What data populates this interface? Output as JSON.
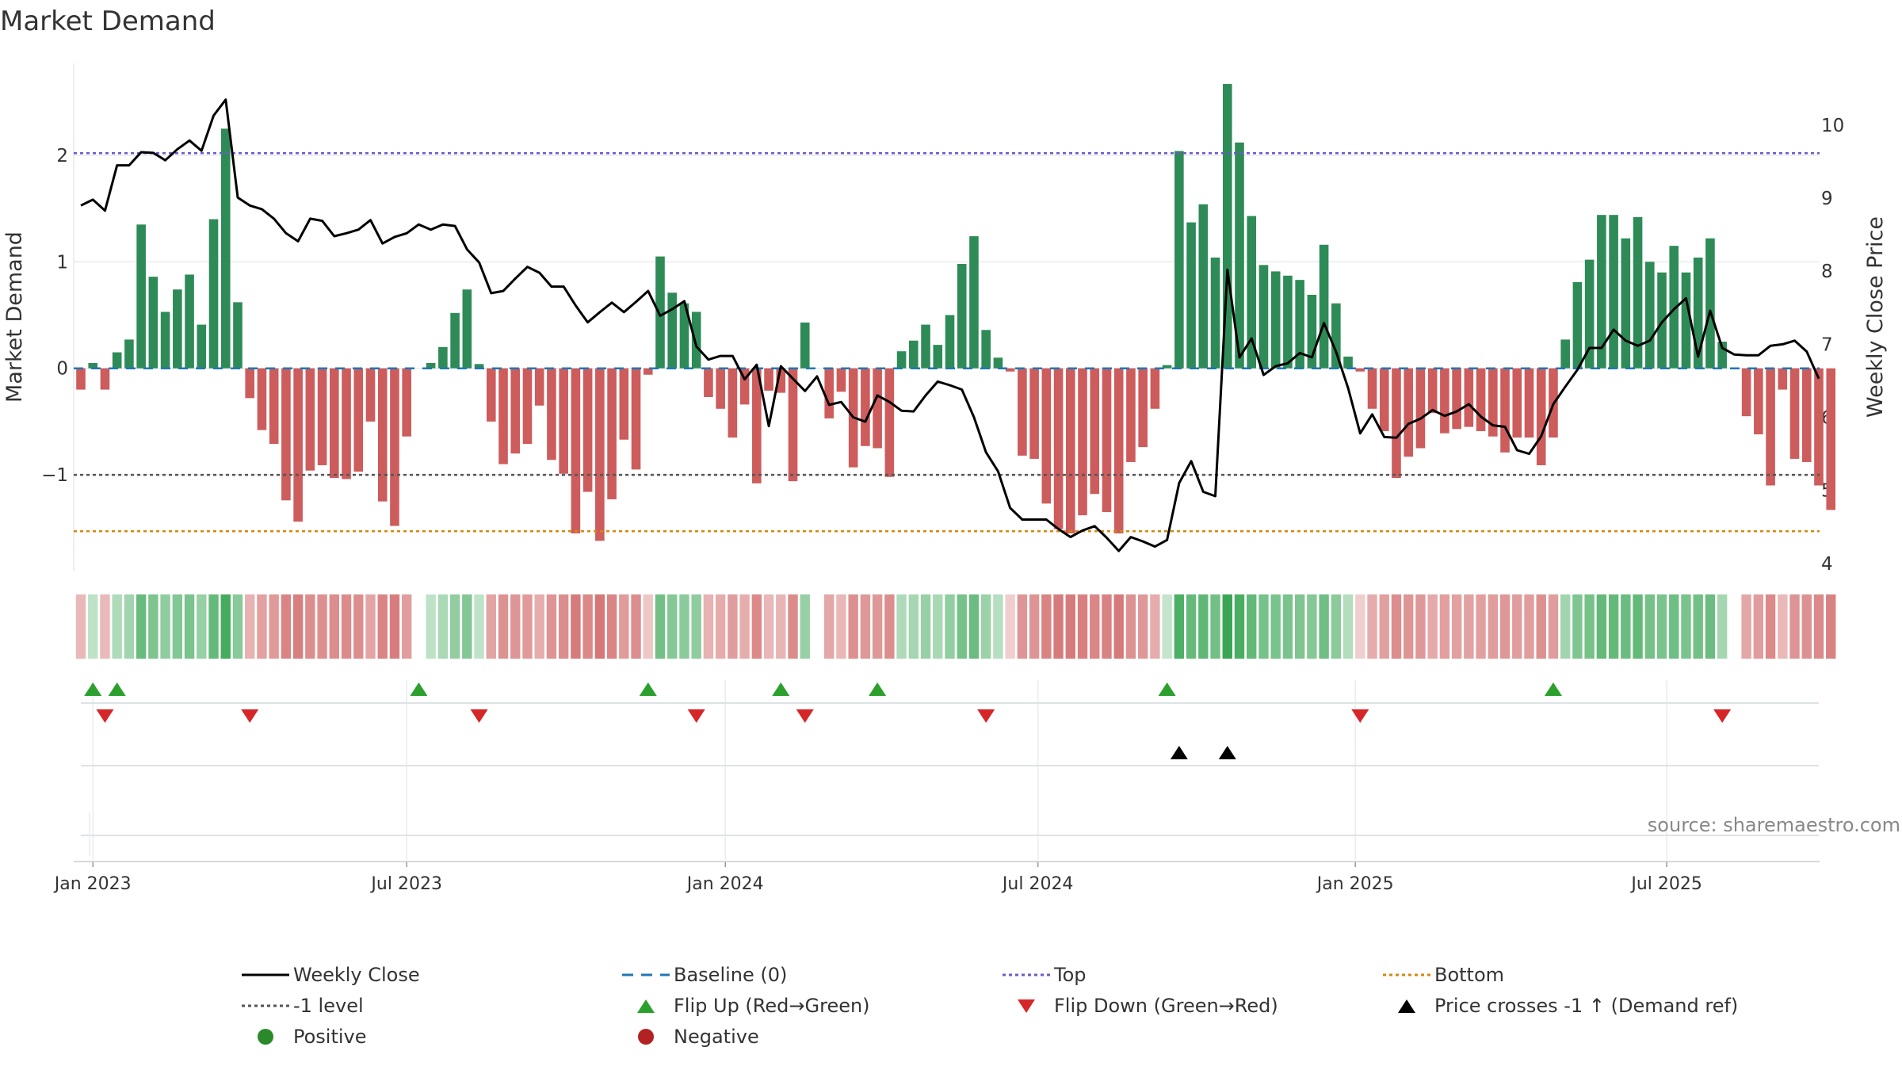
{
  "chart_data": {
    "type": "bar+line",
    "title": "Market Demand",
    "ylabel_left": "Market Demand",
    "ylabel_right": "Weekly Close Price",
    "ylim_left": [
      -1.9,
      2.9
    ],
    "ylim_right": [
      3.9,
      10.9
    ],
    "yticks_left": [
      {
        "v": 2,
        "label": "2"
      },
      {
        "v": 1,
        "label": "1"
      },
      {
        "v": 0,
        "label": "0"
      },
      {
        "v": -1,
        "label": "−1"
      }
    ],
    "yticks_right": [
      {
        "v": 10,
        "label": "10"
      },
      {
        "v": 9,
        "label": "9"
      },
      {
        "v": 8,
        "label": "8"
      },
      {
        "v": 7,
        "label": "7"
      },
      {
        "v": 6,
        "label": "6"
      },
      {
        "v": 5,
        "label": "5"
      },
      {
        "v": 4,
        "label": "4"
      }
    ],
    "x_start": "2022-12-26",
    "x_weeks": 145,
    "xticks": [
      {
        "week": 1,
        "label": "Jan 2023"
      },
      {
        "week": 27,
        "label": "Jul 2023"
      },
      {
        "week": 53.4,
        "label": "Jan 2024"
      },
      {
        "week": 79.3,
        "label": "Jul 2024"
      },
      {
        "week": 105.6,
        "label": "Jan 2025"
      },
      {
        "week": 131.4,
        "label": "Jul 2025"
      }
    ],
    "reference_lines": {
      "top": 2.02,
      "minus_one": -1.0,
      "bottom": -1.53,
      "baseline": 0
    },
    "demand": [
      -0.2,
      0.05,
      -0.2,
      0.15,
      0.27,
      1.35,
      0.86,
      0.53,
      0.74,
      0.88,
      0.41,
      1.4,
      2.25,
      0.62,
      -0.28,
      -0.58,
      -0.71,
      -1.24,
      -1.44,
      -0.96,
      -0.91,
      -1.03,
      -1.04,
      -0.97,
      -0.5,
      -1.25,
      -1.48,
      -0.64,
      0.0,
      0.05,
      0.2,
      0.52,
      0.74,
      0.04,
      -0.5,
      -0.9,
      -0.8,
      -0.71,
      -0.35,
      -0.86,
      -0.99,
      -1.55,
      -1.16,
      -1.62,
      -1.23,
      -0.67,
      -0.95,
      -0.06,
      1.05,
      0.71,
      0.61,
      0.53,
      -0.27,
      -0.38,
      -0.65,
      -0.34,
      -1.08,
      -0.21,
      -0.23,
      -1.06,
      0.43,
      0.0,
      -0.47,
      -0.22,
      -0.93,
      -0.73,
      -0.75,
      -1.02,
      0.16,
      0.26,
      0.41,
      0.22,
      0.5,
      0.98,
      1.24,
      0.36,
      0.1,
      -0.03,
      -0.82,
      -0.85,
      -1.27,
      -1.51,
      -1.55,
      -1.38,
      -1.18,
      -1.35,
      -1.55,
      -0.88,
      -0.74,
      -0.38,
      0.03,
      2.04,
      1.37,
      1.54,
      1.04,
      2.67,
      2.12,
      1.43,
      0.97,
      0.91,
      0.87,
      0.83,
      0.69,
      1.16,
      0.61,
      0.11,
      -0.03,
      -0.38,
      -0.59,
      -1.03,
      -0.83,
      -0.75,
      -0.42,
      -0.61,
      -0.57,
      -0.55,
      -0.59,
      -0.64,
      -0.79,
      -0.65,
      -0.65,
      -0.91,
      -0.65,
      0.27,
      0.81,
      1.02,
      1.44,
      1.44,
      1.22,
      1.42,
      1.0,
      0.9,
      1.15,
      0.9,
      1.04,
      1.22,
      0.25,
      0.0,
      -0.45,
      -0.62,
      -1.1,
      -0.2,
      -0.85,
      -0.88,
      -1.1,
      -1.33
    ],
    "price": [
      8.9,
      8.98,
      8.83,
      9.45,
      9.45,
      9.63,
      9.62,
      9.52,
      9.67,
      9.79,
      9.65,
      10.13,
      10.35,
      9.01,
      8.9,
      8.85,
      8.72,
      8.52,
      8.41,
      8.72,
      8.69,
      8.48,
      8.52,
      8.57,
      8.7,
      8.38,
      8.47,
      8.52,
      8.64,
      8.57,
      8.64,
      8.62,
      8.3,
      8.12,
      7.7,
      7.73,
      7.9,
      8.06,
      7.98,
      7.79,
      7.79,
      7.53,
      7.3,
      7.44,
      7.57,
      7.44,
      7.58,
      7.73,
      7.39,
      7.48,
      7.59,
      6.97,
      6.79,
      6.84,
      6.84,
      6.52,
      6.72,
      5.88,
      6.7,
      6.53,
      6.36,
      6.56,
      6.17,
      6.21,
      6.0,
      5.94,
      6.3,
      6.21,
      6.09,
      6.08,
      6.3,
      6.49,
      6.44,
      6.38,
      6.0,
      5.52,
      5.26,
      4.76,
      4.6,
      4.6,
      4.6,
      4.47,
      4.36,
      4.45,
      4.51,
      4.35,
      4.17,
      4.36,
      4.3,
      4.23,
      4.32,
      5.1,
      5.4,
      4.98,
      4.92,
      8.02,
      6.82,
      7.08,
      6.58,
      6.7,
      6.74,
      6.88,
      6.82,
      7.29,
      6.9,
      6.4,
      5.78,
      6.04,
      5.73,
      5.72,
      5.91,
      5.98,
      6.1,
      6.02,
      6.08,
      6.18,
      6.01,
      5.89,
      5.87,
      5.55,
      5.5,
      5.74,
      6.18,
      6.42,
      6.65,
      6.95,
      6.95,
      7.2,
      7.05,
      6.98,
      7.05,
      7.3,
      7.48,
      7.63,
      6.83,
      7.46,
      6.95,
      6.86,
      6.85,
      6.85,
      6.98,
      7.0,
      7.05,
      6.9,
      6.53
    ],
    "flip_up_weeks": [
      1,
      3,
      28,
      47,
      58,
      66,
      90,
      122
    ],
    "flip_down_weeks": [
      2,
      14,
      33,
      51,
      60,
      75,
      106,
      136
    ],
    "price_cross_up_weeks": [
      91,
      95
    ],
    "source": "source: sharemaestro.com"
  },
  "legend": [
    [
      {
        "label": "Weekly Close",
        "sym": "line",
        "color": "#000000"
      },
      {
        "label": "Baseline (0)",
        "sym": "dash",
        "color": "#1f77b4"
      },
      {
        "label": "Top",
        "sym": "dot",
        "color": "#6a5acd"
      },
      {
        "label": "Bottom",
        "sym": "dot",
        "color": "#d4880f"
      }
    ],
    [
      {
        "label": "-1 level",
        "sym": "dot",
        "color": "#555555"
      },
      {
        "label": "Flip Up (Red→Green)",
        "sym": "tri-up",
        "color": "#2ca02c"
      },
      {
        "label": "Flip Down (Green→Red)",
        "sym": "tri-down",
        "color": "#d62728"
      },
      {
        "label": "Price crosses -1 ↑ (Demand ref)",
        "sym": "tri-up",
        "color": "#000000"
      }
    ],
    [
      {
        "label": "Positive",
        "sym": "circle",
        "color": "#2a8a2a"
      },
      {
        "label": "Negative",
        "sym": "circle",
        "color": "#b22222"
      }
    ]
  ],
  "colors": {
    "positive": "#2e8b57",
    "negative": "#cd5c5c",
    "line": "#000000",
    "baseline": "#1f77b4",
    "top": "#6a5acd",
    "minus_one": "#555555",
    "bottom": "#d4880f"
  }
}
